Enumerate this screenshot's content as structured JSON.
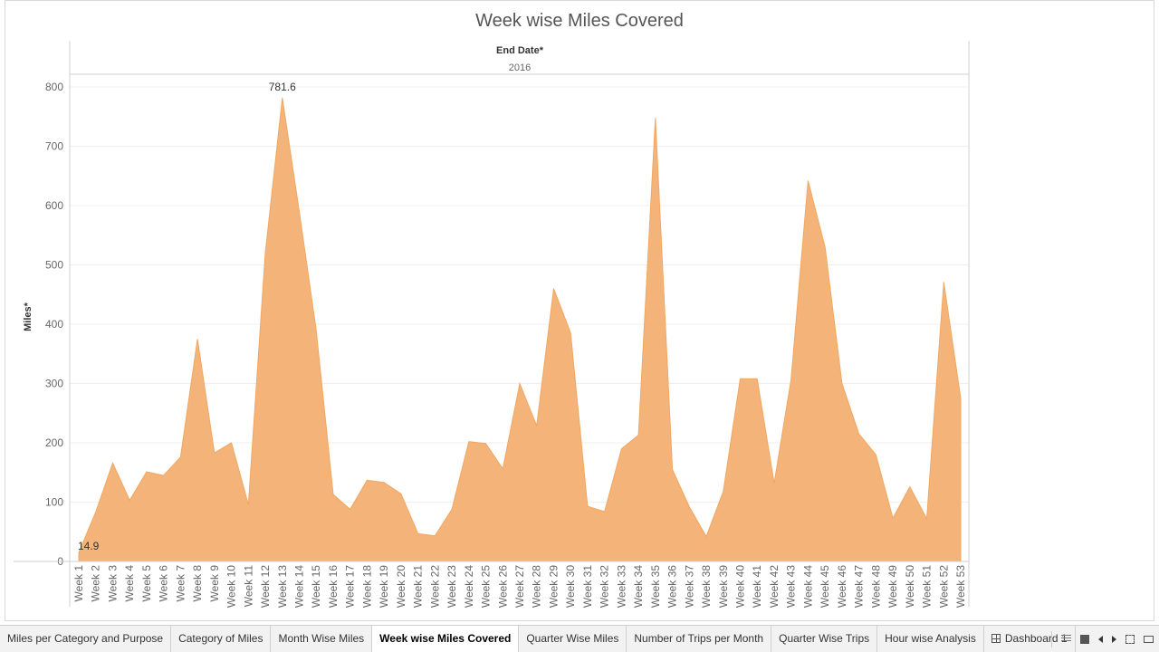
{
  "chart_data": {
    "type": "area",
    "title": "Week wise Miles Covered",
    "column_header": "End Date*",
    "column_value": "2016",
    "ylabel": "Miles*",
    "ylim": [
      0,
      800
    ],
    "yticks": [
      0,
      100,
      200,
      300,
      400,
      500,
      600,
      700,
      800
    ],
    "color": "#f4b479",
    "categories": [
      "Week 1",
      "Week 2",
      "Week 3",
      "Week 4",
      "Week 5",
      "Week 6",
      "Week 7",
      "Week 8",
      "Week 9",
      "Week 10",
      "Week 11",
      "Week 12",
      "Week 13",
      "Week 14",
      "Week 15",
      "Week 16",
      "Week 17",
      "Week 18",
      "Week 19",
      "Week 20",
      "Week 21",
      "Week 22",
      "Week 23",
      "Week 24",
      "Week 25",
      "Week 26",
      "Week 27",
      "Week 28",
      "Week 29",
      "Week 30",
      "Week 31",
      "Week 32",
      "Week 33",
      "Week 34",
      "Week 35",
      "Week 36",
      "Week 37",
      "Week 38",
      "Week 39",
      "Week 40",
      "Week 41",
      "Week 42",
      "Week 43",
      "Week 44",
      "Week 45",
      "Week 46",
      "Week 47",
      "Week 48",
      "Week 49",
      "Week 50",
      "Week 51",
      "Week 52",
      "Week 53"
    ],
    "values": [
      14.9,
      83,
      166,
      103,
      151,
      145,
      176,
      375,
      183,
      200,
      96,
      520,
      781.6,
      590,
      390,
      113,
      88,
      137,
      133,
      114,
      47,
      43,
      88,
      202,
      199,
      156,
      300,
      229,
      460,
      385,
      93,
      84,
      190,
      213,
      748,
      155,
      92,
      42,
      118,
      308,
      308,
      132,
      307,
      642,
      530,
      300,
      215,
      180,
      73,
      126,
      72,
      471,
      275
    ],
    "data_labels": [
      {
        "category": "Week 1",
        "text": "14.9"
      },
      {
        "category": "Week 13",
        "text": "781.6"
      }
    ]
  },
  "tabs": [
    {
      "label": "Miles per Category and Purpose",
      "active": false
    },
    {
      "label": "Category of Miles",
      "active": false
    },
    {
      "label": "Month  Wise Miles",
      "active": false
    },
    {
      "label": "Week wise Miles Covered",
      "active": true
    },
    {
      "label": "Quarter Wise Miles",
      "active": false
    },
    {
      "label": "Number of Trips per Month",
      "active": false
    },
    {
      "label": "Quarter Wise Trips",
      "active": false
    },
    {
      "label": "Hour wise Analysis",
      "active": false
    },
    {
      "label": "Dashboard 1",
      "active": false,
      "icon": "dashboard-icon"
    }
  ],
  "nav_icons": [
    "grid-view-icon",
    "single-view-icon",
    "previous-icon",
    "next-icon",
    "fullscreen-icon",
    "presentation-icon"
  ]
}
